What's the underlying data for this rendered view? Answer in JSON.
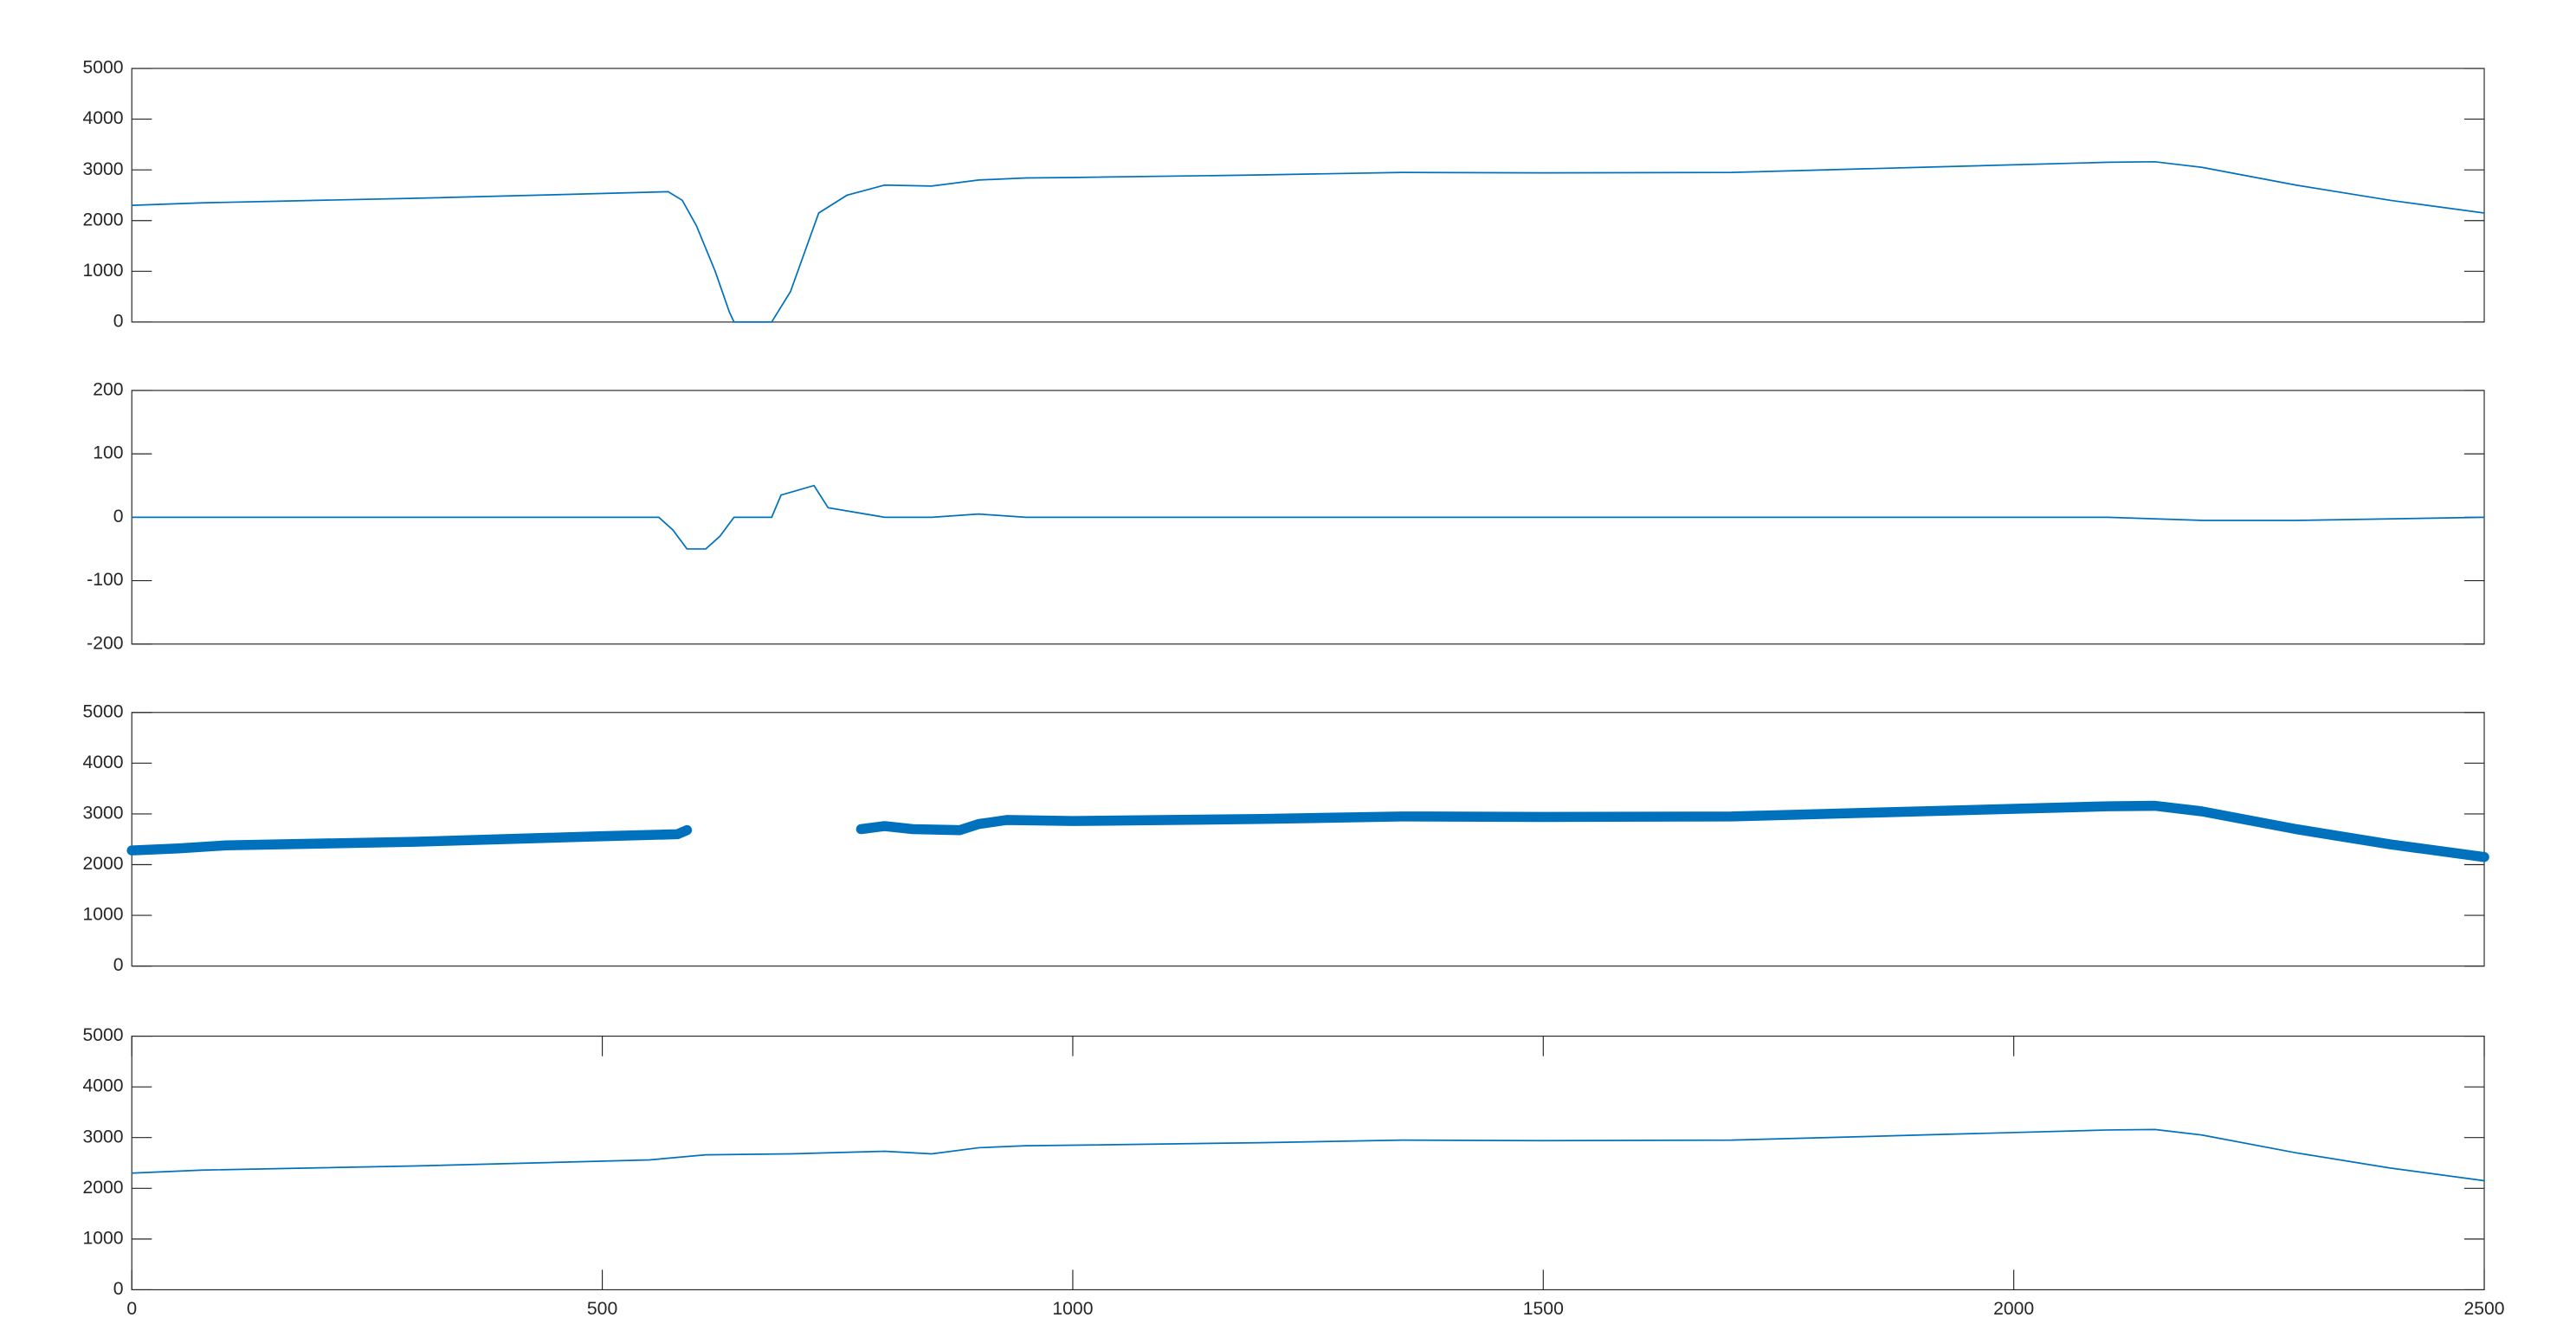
{
  "chart_data": [
    {
      "type": "line",
      "color": "#0072bd",
      "x": [
        0,
        75,
        150,
        300,
        450,
        570,
        585,
        600,
        620,
        635,
        640,
        680,
        700,
        730,
        760,
        800,
        850,
        900,
        950,
        1000,
        1200,
        1350,
        1500,
        1700,
        1900,
        2100,
        2150,
        2200,
        2300,
        2400,
        2500
      ],
      "values": [
        2300,
        2350,
        2380,
        2440,
        2510,
        2570,
        2400,
        1900,
        1000,
        200,
        0,
        0,
        600,
        2150,
        2500,
        2700,
        2680,
        2800,
        2840,
        2850,
        2900,
        2950,
        2940,
        2950,
        3050,
        3150,
        3160,
        3050,
        2700,
        2400,
        2150
      ],
      "xlim": [
        0,
        2500
      ],
      "ylim": [
        0,
        5000
      ],
      "yticks": [
        0,
        1000,
        2000,
        3000,
        4000,
        5000
      ]
    },
    {
      "type": "line",
      "color": "#0072bd",
      "x": [
        0,
        560,
        575,
        590,
        610,
        625,
        640,
        680,
        690,
        725,
        740,
        800,
        850,
        900,
        950,
        2100,
        2200,
        2300,
        2500
      ],
      "values": [
        0,
        0,
        -20,
        -50,
        -50,
        -30,
        0,
        0,
        35,
        50,
        15,
        0,
        0,
        5,
        0,
        0,
        -5,
        -5,
        0
      ],
      "xlim": [
        0,
        2500
      ],
      "ylim": [
        -200,
        200
      ],
      "yticks": [
        -200,
        -100,
        0,
        100,
        200
      ]
    },
    {
      "type": "thick-line",
      "color": "#0072bd",
      "x": [
        0,
        50,
        100,
        300,
        500,
        580,
        590,
        680,
        775,
        800,
        830,
        880,
        900,
        930,
        1000,
        1200,
        1350,
        1500,
        1700,
        1900,
        2100,
        2150,
        2200,
        2300,
        2400,
        2500
      ],
      "values": [
        2280,
        2320,
        2380,
        2450,
        2560,
        2600,
        2680,
        null,
        2700,
        2760,
        2700,
        2680,
        2800,
        2880,
        2860,
        2900,
        2950,
        2940,
        2950,
        3050,
        3150,
        3160,
        3050,
        2700,
        2400,
        2150
      ],
      "xlim": [
        0,
        2500
      ],
      "ylim": [
        0,
        5000
      ],
      "yticks": [
        0,
        1000,
        2000,
        3000,
        4000,
        5000
      ]
    },
    {
      "type": "line",
      "color": "#0072bd",
      "x": [
        0,
        75,
        300,
        550,
        610,
        700,
        800,
        850,
        900,
        950,
        1000,
        1200,
        1350,
        1500,
        1700,
        1900,
        2100,
        2150,
        2200,
        2300,
        2400,
        2500
      ],
      "values": [
        2300,
        2360,
        2440,
        2560,
        2660,
        2680,
        2730,
        2680,
        2800,
        2840,
        2850,
        2900,
        2950,
        2940,
        2950,
        3050,
        3150,
        3160,
        3050,
        2700,
        2400,
        2150
      ],
      "xlim": [
        0,
        2500
      ],
      "ylim": [
        0,
        5000
      ],
      "yticks": [
        0,
        1000,
        2000,
        3000,
        4000,
        5000
      ],
      "xticks": [
        0,
        500,
        1000,
        1500,
        2000,
        2500
      ]
    }
  ]
}
